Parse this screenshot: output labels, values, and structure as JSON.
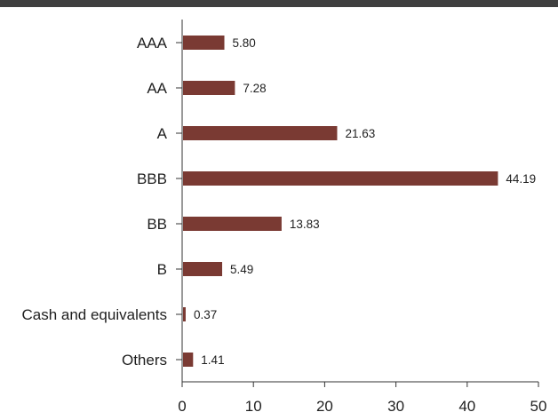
{
  "chart_data": {
    "type": "bar",
    "orientation": "horizontal",
    "categories": [
      "AAA",
      "AA",
      "A",
      "BBB",
      "BB",
      "B",
      "Cash and equivalents",
      "Others"
    ],
    "values": [
      5.8,
      7.28,
      21.63,
      44.19,
      13.83,
      5.49,
      0.37,
      1.41
    ],
    "value_labels": [
      "5.80",
      "7.28",
      "21.63",
      "44.19",
      "13.83",
      "5.49",
      "0.37",
      "1.41"
    ],
    "xlim": [
      0,
      50
    ],
    "xticks": [
      0,
      10,
      20,
      30,
      40,
      50
    ],
    "title": "",
    "xlabel": "",
    "ylabel": "",
    "grid": false,
    "legend": "none",
    "bar_color": "#7a3a33",
    "axis_color": "#333333",
    "top_rule_color": "#3f3f3f"
  }
}
